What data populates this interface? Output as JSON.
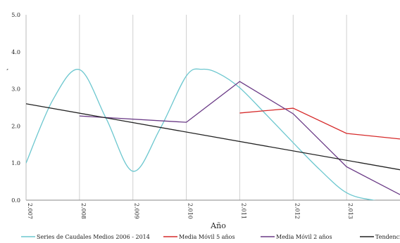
{
  "chart_data": {
    "type": "line",
    "title": "",
    "xlabel": "Año",
    "ylabel": "´",
    "xlim": [
      2007,
      2014
    ],
    "ylim": [
      0,
      5
    ],
    "x_ticks": [
      "2.007",
      "2.008",
      "2.009",
      "2.010",
      "2.011",
      "2.012",
      "2.013"
    ],
    "y_ticks": [
      "0.0",
      "1.0",
      "2.0",
      "3.0",
      "4.0",
      "5.0"
    ],
    "grid": {
      "x": true,
      "y": false
    },
    "legend_position": "bottom",
    "series": [
      {
        "name": "Series de Caudales Medios 2006 - 2014",
        "color": "#6cc7cf",
        "smooth": true,
        "x": [
          2007,
          2007.5,
          2008,
          2008.5,
          2009,
          2009.5,
          2010,
          2010.3,
          2010.6,
          2011,
          2011.5,
          2012,
          2012.5,
          2013,
          2013.5,
          2014
        ],
        "y": [
          1.0,
          2.7,
          3.52,
          2.2,
          0.78,
          1.9,
          3.35,
          3.53,
          3.42,
          3.03,
          2.3,
          1.55,
          0.82,
          0.2,
          0.0,
          -0.05
        ]
      },
      {
        "name": "Media Móvil 5 años",
        "color": "#d62a2a",
        "smooth": false,
        "x": [
          2011,
          2012,
          2013,
          2014
        ],
        "y": [
          2.35,
          2.48,
          1.8,
          1.65
        ]
      },
      {
        "name": "Media Móvil 2 años",
        "color": "#6a3a86",
        "smooth": false,
        "x": [
          2008,
          2010,
          2011,
          2012,
          2013,
          2014
        ],
        "y": [
          2.27,
          2.1,
          3.2,
          2.33,
          0.9,
          0.15
        ]
      },
      {
        "name": "Tendencia",
        "color": "#222222",
        "smooth": false,
        "x": [
          2007,
          2014
        ],
        "y": [
          2.6,
          0.82
        ]
      }
    ]
  }
}
